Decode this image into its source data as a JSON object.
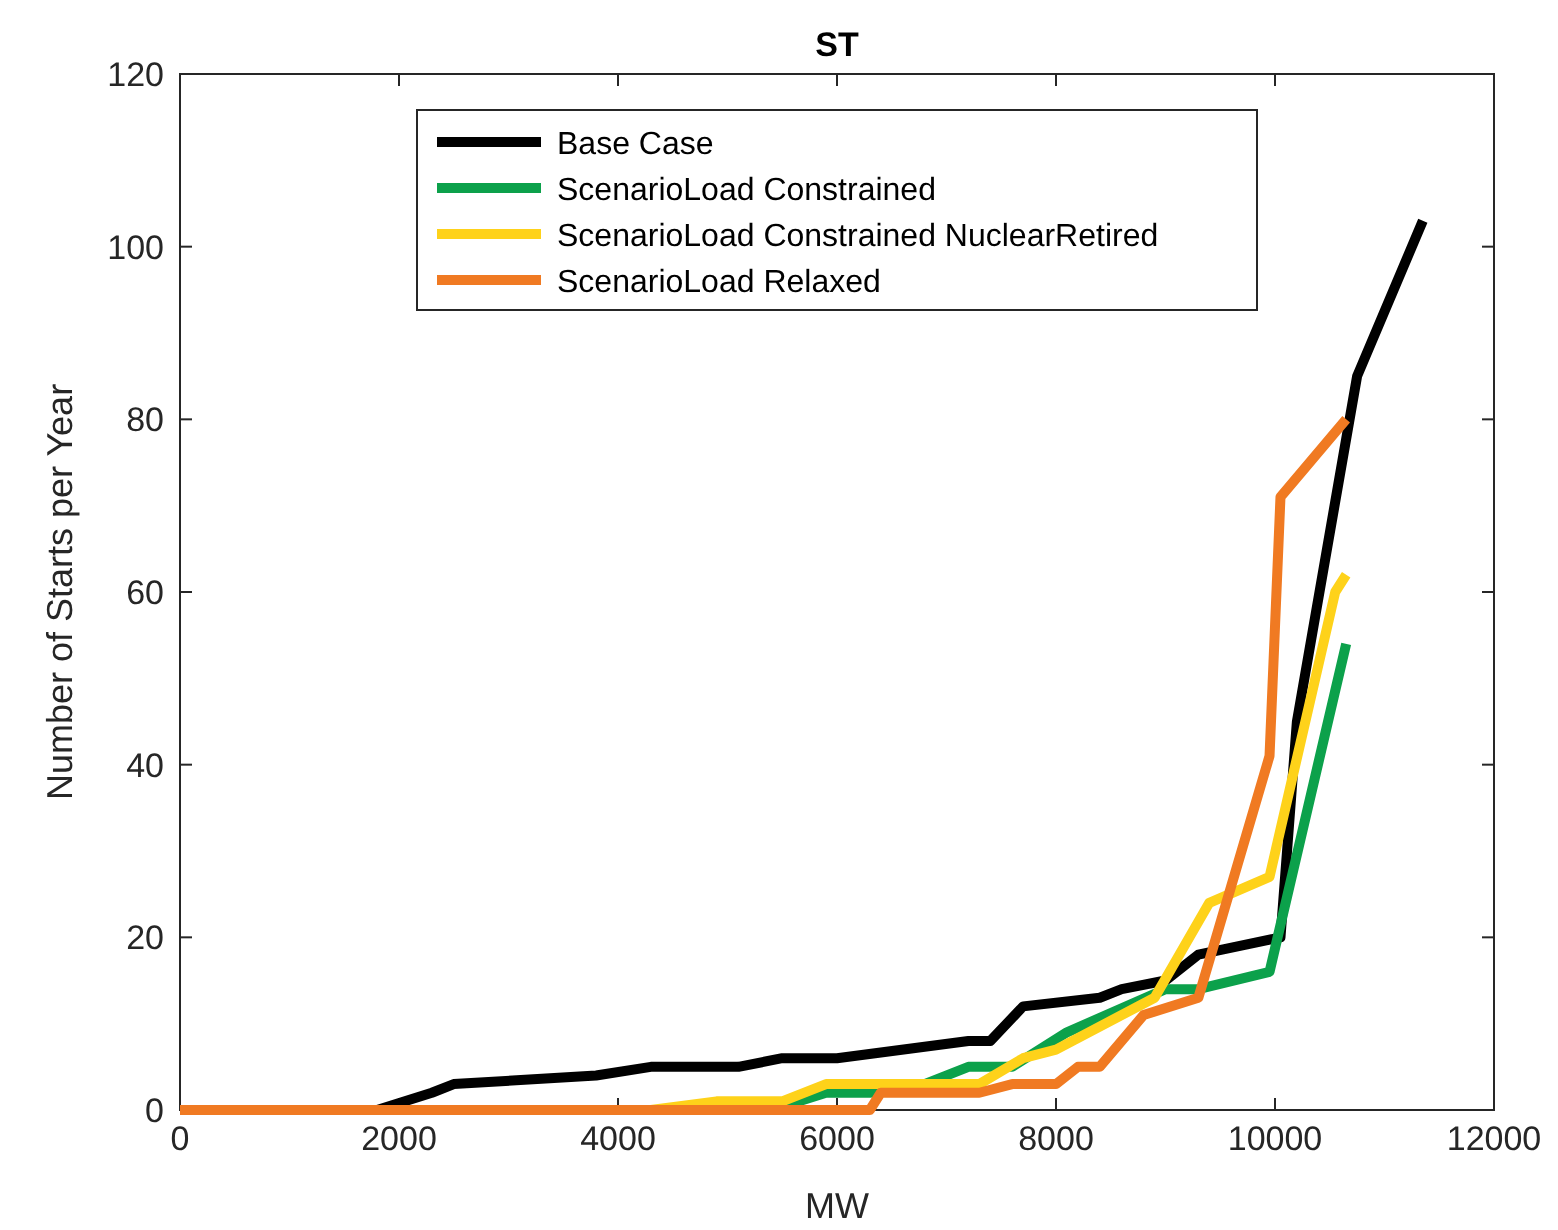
{
  "chart_data": {
    "type": "line",
    "title": "ST",
    "xlabel": "MW",
    "ylabel": "Number of Starts per Year",
    "xlim": [
      0,
      12000
    ],
    "xticks": [
      0,
      2000,
      4000,
      6000,
      8000,
      10000,
      12000
    ],
    "ylim": [
      0,
      120
    ],
    "yticks": [
      0,
      20,
      40,
      60,
      80,
      100,
      120
    ],
    "grid": false,
    "legend": "top",
    "marker": "none",
    "line_style": "solid",
    "series": [
      {
        "name": "Base Case",
        "color": "#000000",
        "x": [
          0,
          1800,
          2300,
          2500,
          3800,
          4300,
          5100,
          5500,
          6000,
          7200,
          7400,
          7700,
          8400,
          8600,
          9000,
          9300,
          10050,
          10200,
          10750,
          11350
        ],
        "values": [
          0,
          0,
          2,
          3,
          4,
          5,
          5,
          6,
          6,
          8,
          8,
          12,
          13,
          14,
          15,
          18,
          20,
          45,
          85,
          103
        ]
      },
      {
        "name": "ScenarioLoad Constrained",
        "color": "#0ca14b",
        "x": [
          0,
          5400,
          5900,
          6300,
          6800,
          7200,
          7600,
          8100,
          9000,
          9300,
          9950,
          10650
        ],
        "values": [
          0,
          0,
          2,
          2,
          3,
          5,
          5,
          9,
          14,
          14,
          16,
          54
        ]
      },
      {
        "name": "ScenarioLoad Constrained NuclearRetired",
        "color": "#fed21a",
        "x": [
          0,
          4300,
          4900,
          5500,
          5900,
          7300,
          7700,
          8000,
          8900,
          9400,
          9950,
          10550,
          10650
        ],
        "values": [
          0,
          0,
          1,
          1,
          3,
          3,
          6,
          7,
          13,
          24,
          27,
          60,
          62
        ]
      },
      {
        "name": "ScenarioLoad Relaxed",
        "color": "#f07a22",
        "x": [
          0,
          6300,
          6400,
          7300,
          7600,
          8000,
          8200,
          8400,
          8800,
          9300,
          9950,
          10050,
          10650
        ],
        "values": [
          0,
          0,
          2,
          2,
          3,
          3,
          5,
          5,
          11,
          13,
          41,
          71,
          80
        ]
      }
    ]
  }
}
